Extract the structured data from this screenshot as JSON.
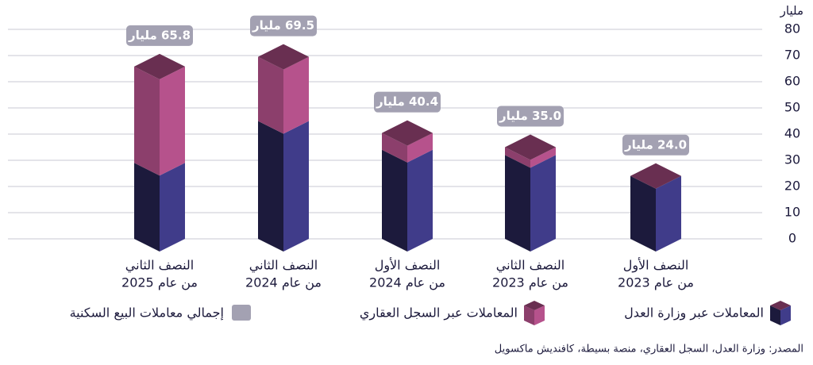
{
  "chart_data": {
    "type": "bar3d_stacked",
    "y_label": "مليار",
    "source": "المصدر: وزارة العدل، السجل العقاري، منصة بسيطة، كافنديش ماكسويل",
    "categories": [
      [
        "النصف الأول",
        "من عام 2023"
      ],
      [
        "النصف الثاني",
        "من عام 2023"
      ],
      [
        "النصف الأول",
        "من عام 2024"
      ],
      [
        "النصف الثاني",
        "من عام 2024"
      ],
      [
        "النصف الثاني",
        "من عام 2025"
      ]
    ],
    "series": [
      {
        "name": "المعاملات عبر وزارة العدل",
        "color": "#1c1a3c",
        "values": [
          24.0,
          32,
          34,
          45,
          29
        ]
      },
      {
        "name": "المعاملات عبر السجل العقاري",
        "color": "#8c3f6c",
        "values": [
          0,
          3,
          6.4,
          24.5,
          36.8
        ]
      },
      {
        "name": "إجمالي معاملات البيع السكنية",
        "color": "#a3a1b2",
        "values": [
          24.0,
          35.0,
          40.4,
          69.5,
          65.8
        ],
        "value_labels": [
          "24.0 مليار",
          "35.0 مليار",
          "40.4 مليار",
          "69.5 مليار",
          "65.8 مليار"
        ]
      }
    ],
    "ylim": [
      0,
      80
    ],
    "yticks": [
      0,
      10,
      20,
      30,
      40,
      50,
      60,
      70,
      80
    ],
    "grid": true
  }
}
